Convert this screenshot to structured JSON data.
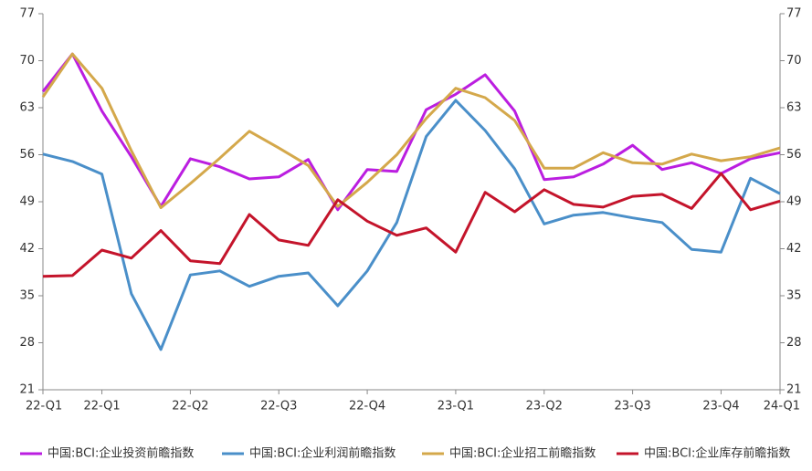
{
  "chart_data": {
    "type": "line",
    "categories": [
      "22-Q1",
      null,
      "22-Q1",
      null,
      null,
      "22-Q2",
      null,
      null,
      "22-Q3",
      null,
      null,
      "22-Q4",
      null,
      null,
      "23-Q1",
      null,
      null,
      "23-Q2",
      null,
      null,
      "23-Q3",
      null,
      null,
      "23-Q4",
      null,
      "24-Q1"
    ],
    "series": [
      {
        "name": "中国:BCI:企业投资前瞻指数",
        "color": "#bb1ee0",
        "values": [
          65.4,
          71.0,
          62.5,
          55.7,
          48.3,
          55.4,
          54.2,
          52.4,
          52.7,
          55.3,
          47.8,
          53.8,
          53.5,
          62.7,
          65.0,
          67.9,
          62.5,
          52.3,
          52.7,
          54.6,
          57.4,
          53.8,
          54.8,
          53.2,
          55.4,
          56.3
        ]
      },
      {
        "name": "中国:BCI:企业利润前瞻指数",
        "color": "#4a8fc9",
        "values": [
          56.1,
          55.0,
          53.1,
          35.3,
          27.0,
          38.1,
          38.7,
          36.4,
          37.9,
          38.4,
          33.5,
          38.7,
          45.9,
          58.7,
          64.1,
          59.6,
          53.9,
          45.7,
          47.0,
          47.4,
          46.6,
          45.9,
          41.9,
          41.5,
          52.5,
          50.2
        ]
      },
      {
        "name": "中国:BCI:企业招工前瞻指数",
        "color": "#d4a84b",
        "values": [
          64.6,
          71.0,
          65.9,
          56.6,
          48.1,
          51.7,
          55.5,
          59.5,
          57.0,
          54.4,
          48.3,
          51.9,
          56.0,
          61.4,
          65.9,
          64.5,
          61.1,
          54.0,
          54.0,
          56.3,
          54.8,
          54.6,
          56.1,
          55.1,
          55.7,
          57.0
        ]
      },
      {
        "name": "中国:BCI:企业库存前瞻指数",
        "color": "#c4142b",
        "values": [
          37.9,
          38.0,
          41.8,
          40.6,
          44.7,
          40.2,
          39.8,
          47.1,
          43.3,
          42.5,
          49.3,
          46.1,
          44.0,
          45.1,
          41.5,
          50.4,
          47.5,
          50.8,
          48.6,
          48.2,
          49.8,
          50.1,
          48.0,
          53.2,
          47.8,
          49.1
        ]
      }
    ],
    "ylim": [
      21,
      77
    ],
    "yticks": [
      21,
      28,
      35,
      42,
      49,
      56,
      63,
      70,
      77
    ],
    "y2lim": [
      21,
      77
    ],
    "y2ticks": [
      21,
      28,
      35,
      42,
      49,
      56,
      63,
      70,
      77
    ],
    "grid": false,
    "legend": "bottom"
  }
}
